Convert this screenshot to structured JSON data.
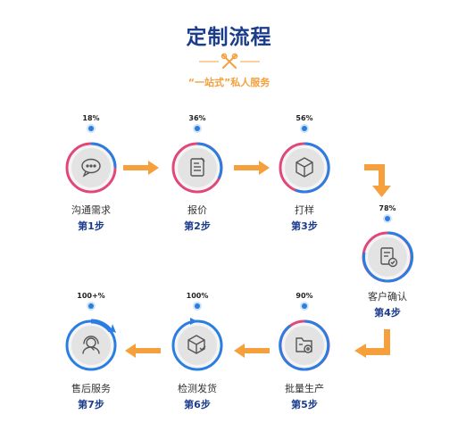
{
  "header": {
    "title": "定制流程",
    "subtitle": "“一站式”私人服务",
    "icon": "scissors-ruler-icon"
  },
  "colors": {
    "title": "#1b3d8c",
    "accent": "#f5a03c",
    "ring_blue": "#2a7de1",
    "ring_pink": "#e0487a"
  },
  "steps": [
    {
      "percent": "18%",
      "progress": 0.18,
      "name": "沟通需求",
      "step": "第1步",
      "icon": "chat-bubble-icon"
    },
    {
      "percent": "36%",
      "progress": 0.36,
      "name": "报价",
      "step": "第2步",
      "icon": "quote-document-icon"
    },
    {
      "percent": "56%",
      "progress": 0.56,
      "name": "打样",
      "step": "第3步",
      "icon": "sample-box-icon"
    },
    {
      "percent": "78%",
      "progress": 0.78,
      "name": "客户确认",
      "step": "第4步",
      "icon": "confirm-document-icon"
    },
    {
      "percent": "90%",
      "progress": 0.9,
      "name": "批量生产",
      "step": "第5步",
      "icon": "production-folder-icon"
    },
    {
      "percent": "100%",
      "progress": 1.0,
      "name": "检测发货",
      "step": "第6步",
      "icon": "shipping-box-icon"
    },
    {
      "percent": "100+%",
      "progress": 1.0,
      "name": "售后服务",
      "step": "第7步",
      "icon": "after-sales-service-icon"
    }
  ]
}
